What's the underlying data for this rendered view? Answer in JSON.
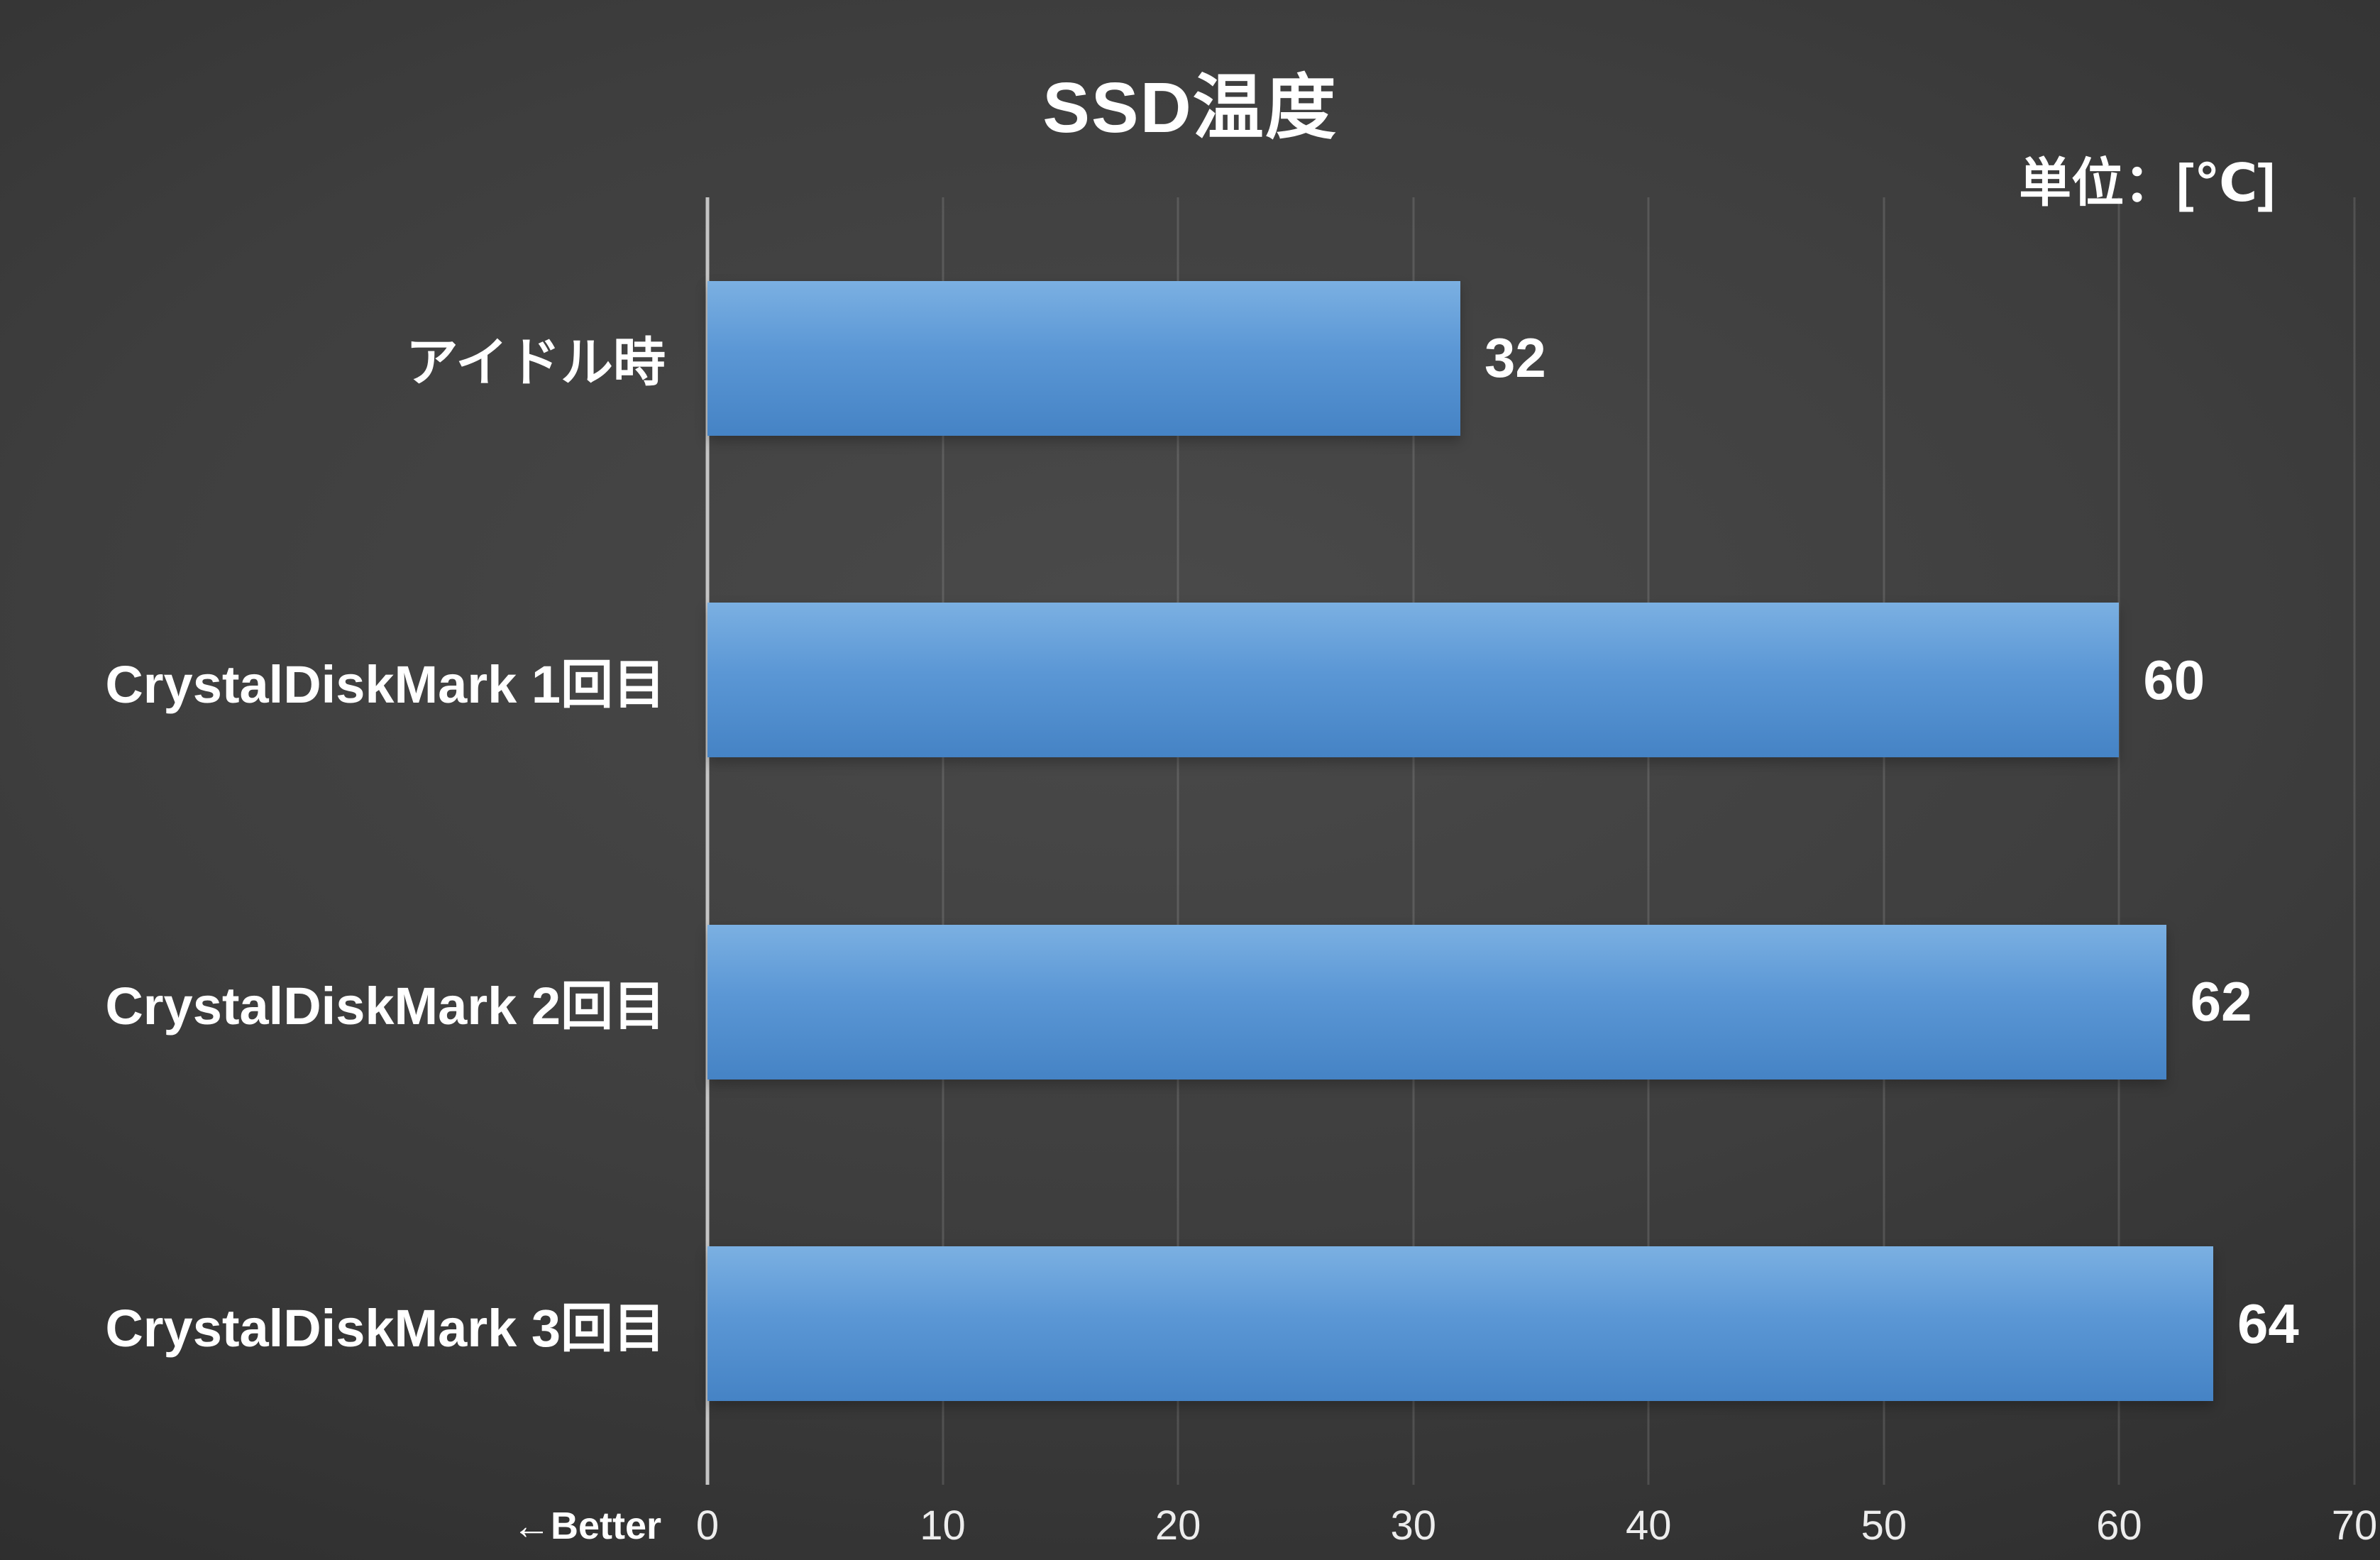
{
  "chart_data": {
    "type": "bar",
    "orientation": "horizontal",
    "title": "SSD温度",
    "unit_label": "単位：[℃]",
    "better_label": "←Better",
    "categories": [
      "アイドル時",
      "CrystalDiskMark 1回目",
      "CrystalDiskMark 2回目",
      "CrystalDiskMark 3回目"
    ],
    "values": [
      32,
      60,
      62,
      64
    ],
    "xlim": [
      0,
      70
    ],
    "tick_step": 10,
    "tick_labels": [
      "0",
      "10",
      "20",
      "30",
      "40",
      "50",
      "60",
      "70"
    ],
    "grid": true,
    "legend": "none",
    "bar_color_top": "#7bb0e2",
    "bar_color_bottom": "#4583c5",
    "background_color": "#3a3a3a",
    "text_color": "#ffffff"
  }
}
